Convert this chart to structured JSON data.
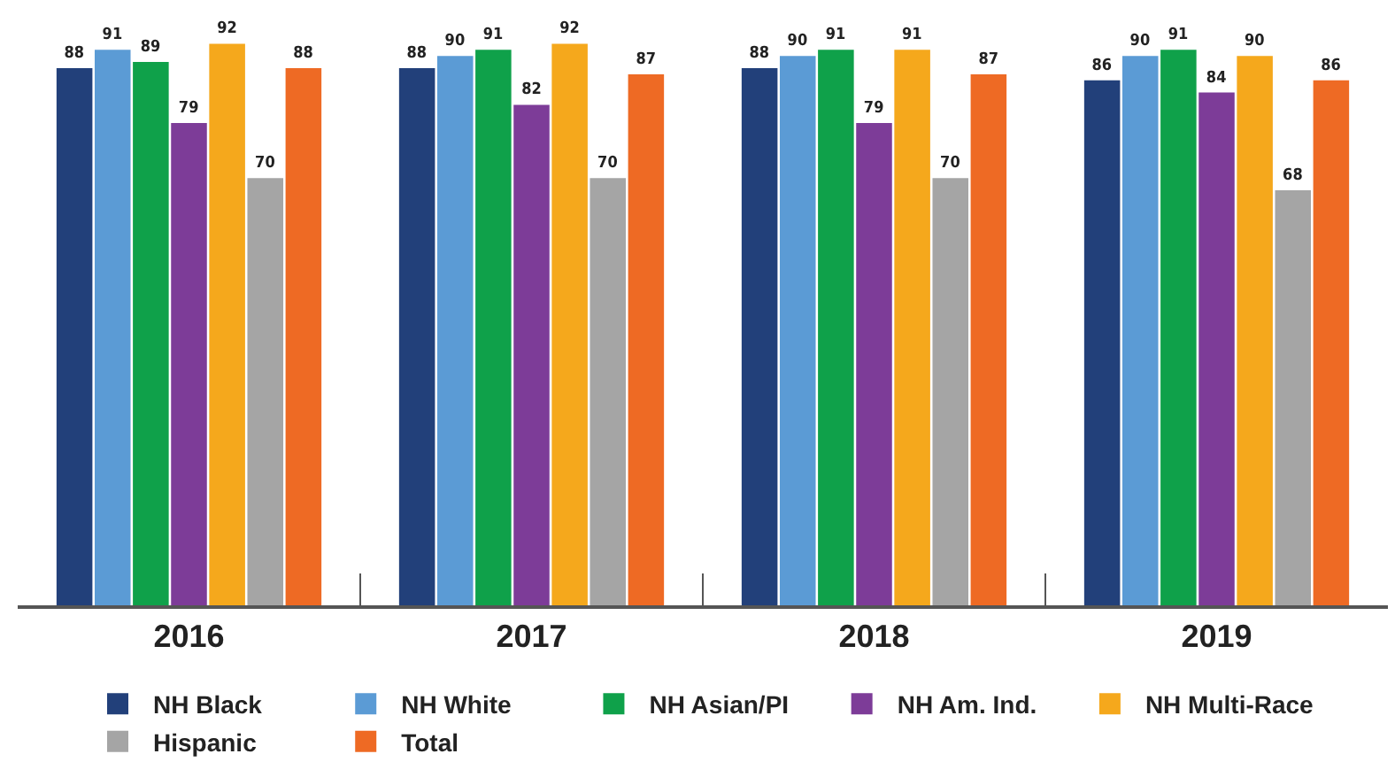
{
  "chart_data": {
    "type": "bar",
    "categories": [
      "2016",
      "2017",
      "2018",
      "2019"
    ],
    "series": [
      {
        "name": "NH Black",
        "color": "#22407a",
        "values": [
          88,
          88,
          88,
          86
        ]
      },
      {
        "name": "NH White",
        "color": "#5b9bd5",
        "values": [
          91,
          90,
          90,
          90
        ]
      },
      {
        "name": "NH Asian/PI",
        "color": "#0fa14a",
        "values": [
          89,
          91,
          91,
          91
        ]
      },
      {
        "name": "NH Am. Ind.",
        "color": "#7d3c98",
        "values": [
          79,
          82,
          79,
          84
        ]
      },
      {
        "name": "NH Multi-Race",
        "color": "#f5a81c",
        "values": [
          92,
          92,
          91,
          90
        ]
      },
      {
        "name": "Hispanic",
        "color": "#a5a5a5",
        "values": [
          70,
          70,
          70,
          68
        ]
      },
      {
        "name": "Total",
        "color": "#ee6a24",
        "values": [
          88,
          87,
          87,
          86
        ]
      }
    ],
    "data_labels": true,
    "legend": "bottom",
    "tick_labels": "x"
  }
}
